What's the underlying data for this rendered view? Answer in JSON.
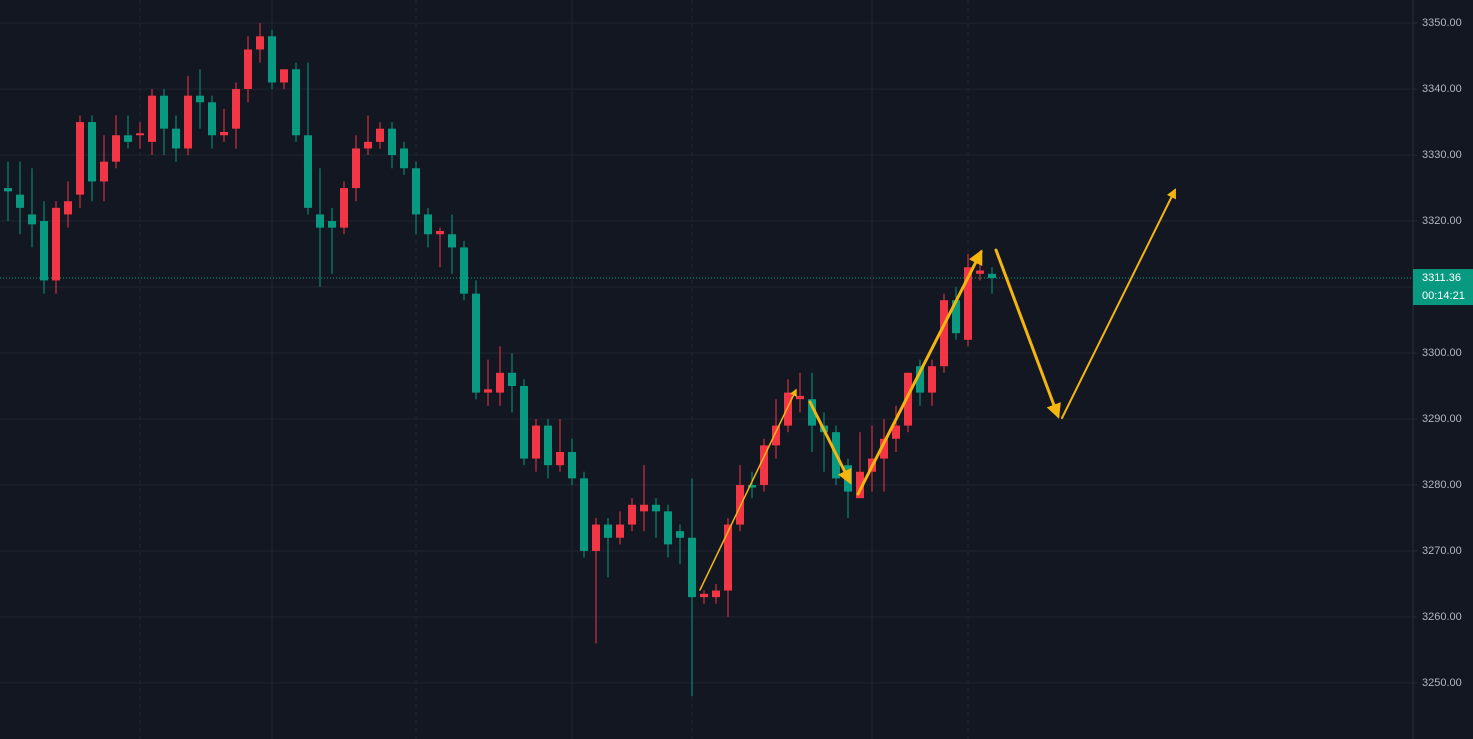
{
  "chart_data": {
    "type": "candlestick",
    "up_color": "#f23645",
    "down_color": "#089981",
    "open": [
      3325,
      3324,
      3321,
      3320,
      3311,
      3321,
      3324,
      3335,
      3326,
      3329,
      3333,
      3333,
      3332,
      3339,
      3334,
      3331,
      3339,
      3338,
      3333,
      3334,
      3340,
      3346,
      3348,
      3341,
      3343,
      3333,
      3321,
      3320,
      3319,
      3325,
      3331,
      3332,
      3334,
      3331,
      3328,
      3321,
      3318,
      3318,
      3316,
      3309,
      3294,
      3294,
      3297,
      3295,
      3284,
      3289,
      3283,
      3285,
      3281,
      3270,
      3274,
      3272,
      3274,
      3276,
      3277,
      3276,
      3273,
      3272,
      3263,
      3263,
      3264,
      3274,
      3280,
      3280,
      3286,
      3289,
      3293,
      3293,
      3289,
      3288,
      3283,
      3278,
      3282,
      3284,
      3287,
      3289,
      3298,
      3294,
      3298,
      3308,
      3302,
      3312,
      3312
    ],
    "high": [
      3329,
      3329,
      3328,
      3323,
      3323,
      3326,
      3336,
      3336,
      3333,
      3336,
      3336,
      3335,
      3340,
      3340,
      3336,
      3342,
      3343,
      3339,
      3337,
      3341,
      3348,
      3350,
      3349,
      3343,
      3344,
      3344,
      3328,
      3322,
      3326,
      3333,
      3336,
      3335,
      3335,
      3332,
      3329,
      3322,
      3319,
      3321,
      3317,
      3311,
      3299,
      3301,
      3300,
      3296,
      3290,
      3290,
      3290,
      3287,
      3282,
      3275,
      3275,
      3276,
      3278,
      3283,
      3278,
      3277,
      3274,
      3281,
      3264,
      3265,
      3275,
      3283,
      3282,
      3287,
      3293,
      3296,
      3297,
      3297,
      3291,
      3289,
      3284,
      3288,
      3289,
      3290,
      3292,
      3297,
      3299,
      3299,
      3309,
      3310,
      3315,
      3315,
      3313
    ],
    "low": [
      3320,
      3318,
      3316,
      3309,
      3309,
      3319,
      3322,
      3323,
      3323,
      3328,
      3331,
      3331,
      3330,
      3330,
      3329,
      3330,
      3334,
      3331,
      3332,
      3331,
      3338,
      3344,
      3340,
      3340,
      3332,
      3321,
      3310,
      3312,
      3318,
      3323,
      3330,
      3331,
      3328,
      3327,
      3318,
      3316,
      3313,
      3312,
      3308,
      3293,
      3292,
      3292,
      3291,
      3283,
      3282,
      3281,
      3282,
      3280,
      3269,
      3256,
      3266,
      3271,
      3273,
      3273,
      3272,
      3269,
      3268,
      3248,
      3262,
      3262,
      3260,
      3273,
      3278,
      3279,
      3284,
      3288,
      3291,
      3285,
      3282,
      3280,
      3275,
      3278,
      3279,
      3279,
      3285,
      3288,
      3292,
      3292,
      3297,
      3302,
      3301,
      3311,
      3309
    ],
    "close": [
      3324.5,
      3322,
      3319.5,
      3311,
      3322,
      3323,
      3335,
      3326,
      3329,
      3333,
      3332,
      3333.3,
      3339,
      3334,
      3331,
      3339,
      3338,
      3333,
      3333.5,
      3340,
      3346,
      3348,
      3341,
      3343,
      3333,
      3322,
      3319,
      3319,
      3325,
      3331,
      3332,
      3334,
      3330,
      3328,
      3321,
      3318,
      3318.5,
      3316,
      3309,
      3294,
      3294.5,
      3297,
      3295,
      3284,
      3289,
      3283,
      3285,
      3281,
      3270,
      3274,
      3272,
      3274,
      3277,
      3277,
      3276,
      3271,
      3272,
      3263,
      3263.5,
      3264,
      3274,
      3280,
      3279.6,
      3286,
      3289,
      3294,
      3293.5,
      3289,
      3288,
      3281,
      3279,
      3282,
      3284,
      3287,
      3289,
      3297,
      3294,
      3298,
      3308,
      3303,
      3313,
      3312.5,
      3311.36
    ],
    "ylim": [
      3241.5,
      3353.5
    ],
    "yticks": [
      {
        "value": 3250,
        "label": "3250.00"
      },
      {
        "value": 3260,
        "label": "3260.00"
      },
      {
        "value": 3270,
        "label": "3270.00"
      },
      {
        "value": 3280,
        "label": "3280.00"
      },
      {
        "value": 3290,
        "label": "3290.00"
      },
      {
        "value": 3300,
        "label": "3300.00"
      },
      {
        "value": 3310,
        "label": "3310.00"
      },
      {
        "value": 3320,
        "label": "3320.00"
      },
      {
        "value": 3330,
        "label": "3330.00"
      },
      {
        "value": 3340,
        "label": "3340.00"
      },
      {
        "value": 3350,
        "label": "3350.00"
      }
    ],
    "last_price": 3311.36,
    "countdown": "00:14:21",
    "grid": true
  }
}
